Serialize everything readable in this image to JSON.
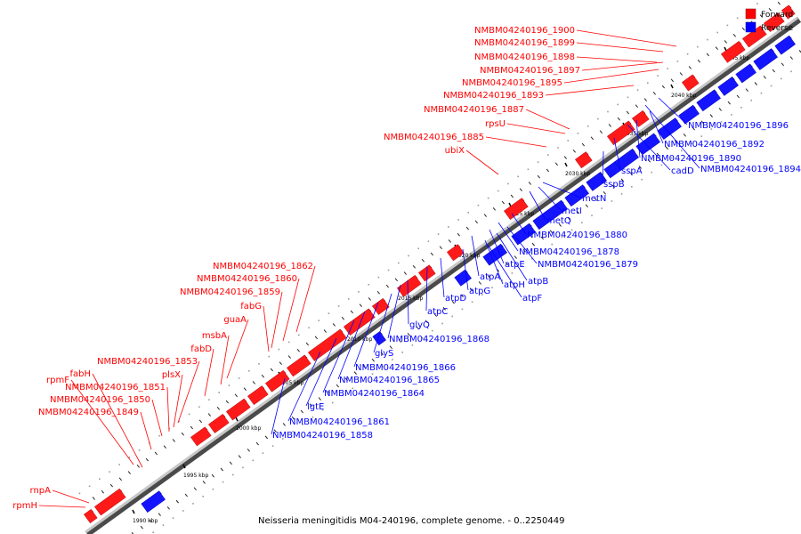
{
  "caption": "Neisseria meningitidis M04-240196, complete genome. - 0..2250449",
  "legend": {
    "forward": {
      "label": "Forward",
      "color": "#ff0000"
    },
    "reverse": {
      "label": "Reverse",
      "color": "#0000ff"
    }
  },
  "ticks": [
    "1990 kbp",
    "1995 kbp",
    "2000 kbp",
    "2005 kbp",
    "2010 kbp",
    "2015 kbp",
    "2020 kbp",
    "2025 kbp",
    "2030 kbp",
    "2035 kbp",
    "2040 kbp",
    "2045 kbp"
  ],
  "forward_labels": [
    "NMBM04240196_1900",
    "NMBM04240196_1899",
    "NMBM04240196_1898",
    "NMBM04240196_1897",
    "NMBM04240196_1895",
    "NMBM04240196_1893",
    "NMBM04240196_1887",
    "rpsU",
    "NMBM04240196_1885",
    "ubiX",
    "NMBM04240196_1862",
    "NMBM04240196_1860",
    "NMBM04240196_1859",
    "fabG",
    "guaA",
    "msbA",
    "fabD",
    "NMBM04240196_1853",
    "plsX",
    "fabH",
    "rpmF",
    "NMBM04240196_1851",
    "NMBM04240196_1850",
    "NMBM04240196_1849",
    "rnpA",
    "rpmH"
  ],
  "reverse_labels": [
    "NMBM04240196_1896",
    "NMBM04240196_1892",
    "NMBM04240196_1890",
    "cadD",
    "NMBM04240196_1894",
    "sspA",
    "sspB",
    "metN",
    "metI",
    "metQ",
    "NMBM04240196_1880",
    "NMBM04240196_1878",
    "atpE",
    "NMBM04240196_1879",
    "atpB",
    "atpA",
    "atpH",
    "atpD",
    "atpG",
    "atpF",
    "atpC",
    "glyQ",
    "NMBM04240196_1868",
    "glyS",
    "NMBM04240196_1866",
    "NMBM04240196_1865",
    "NMBM04240196_1864",
    "lgtE",
    "NMBM04240196_1861",
    "NMBM04240196_1858"
  ]
}
